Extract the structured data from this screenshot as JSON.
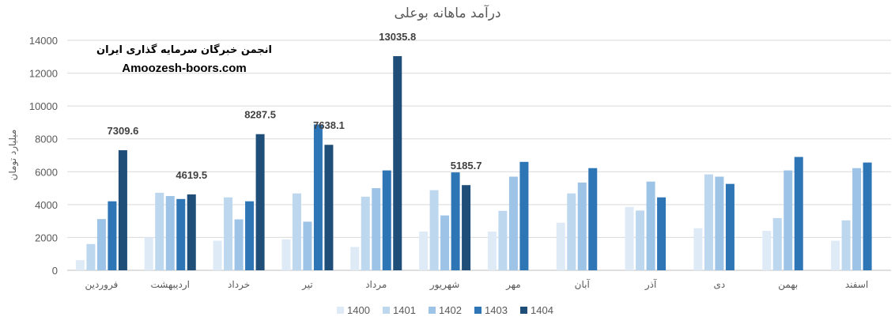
{
  "chart_data": {
    "type": "bar",
    "title": "درآمد ماهانه بوعلی",
    "ylabel": "میلیارد تومان",
    "xlabel": "",
    "ylim": [
      0,
      14000
    ],
    "yticks": [
      "0",
      "2000",
      "4000",
      "6000",
      "8000",
      "10000",
      "12000",
      "14000"
    ],
    "grid": true,
    "legend_position": "bottom",
    "categories": [
      "فروردین",
      "اردیبهشت",
      "خرداد",
      "تیر",
      "مرداد",
      "شهریور",
      "مهر",
      "آبان",
      "آذر",
      "دی",
      "بهمن",
      "اسفند"
    ],
    "series": [
      {
        "name": "1400",
        "color": "#deebf7",
        "values": [
          620,
          2000,
          1800,
          1880,
          1420,
          2360,
          2360,
          2900,
          3860,
          2560,
          2400,
          1800
        ]
      },
      {
        "name": "1401",
        "color": "#bdd7ee",
        "values": [
          1600,
          4720,
          4440,
          4680,
          4480,
          4880,
          3620,
          4680,
          3640,
          5840,
          3180,
          3040
        ]
      },
      {
        "name": "1402",
        "color": "#9dc3e6",
        "values": [
          3120,
          4520,
          3100,
          2960,
          5000,
          3340,
          5700,
          5340,
          5400,
          5700,
          6080,
          6220
        ]
      },
      {
        "name": "1403",
        "color": "#2e75b6",
        "values": [
          4200,
          4340,
          4200,
          8880,
          6080,
          5960,
          6600,
          6220,
          4440,
          5260,
          6900,
          6560
        ]
      },
      {
        "name": "1404",
        "color": "#1f4e79",
        "values": [
          7309.6,
          4619.5,
          8287.5,
          7638.1,
          13035.8,
          5185.7,
          null,
          null,
          null,
          null,
          null,
          null
        ]
      }
    ],
    "data_labels": [
      {
        "series": "1404",
        "category_index": 0,
        "text": "7309.6"
      },
      {
        "series": "1404",
        "category_index": 1,
        "text": "4619.5"
      },
      {
        "series": "1404",
        "category_index": 2,
        "text": "8287.5"
      },
      {
        "series": "1404",
        "category_index": 3,
        "text": "7638.1"
      },
      {
        "series": "1404",
        "category_index": 4,
        "text": "13035.8"
      },
      {
        "series": "1404",
        "category_index": 5,
        "text": "5185.7"
      }
    ]
  },
  "watermark": {
    "line1": "انجمن خبرگان سرمایه گذاری ایران",
    "line2": "Amoozesh-boors.com"
  }
}
